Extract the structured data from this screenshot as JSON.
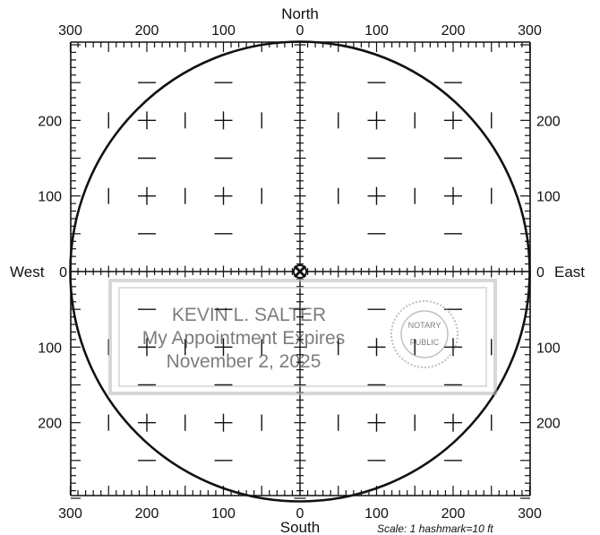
{
  "compass": {
    "north": "North",
    "south": "South",
    "west": "West",
    "east": "East"
  },
  "scale_note": "Scale:  1 hashmark=10 ft",
  "axis": {
    "range_ft": [
      -300,
      300
    ],
    "hashmark_ft": 10,
    "major_ft": 50,
    "top_ticks": [
      "300",
      "200",
      "100",
      "0",
      "100",
      "200",
      "300"
    ],
    "bottom_ticks": [
      "300",
      "200",
      "100",
      "0",
      "100",
      "200",
      "300"
    ],
    "left_ticks": [
      "200",
      "100",
      "0",
      "100",
      "200"
    ],
    "right_ticks": [
      "200",
      "100",
      "0",
      "100",
      "200"
    ],
    "tick_ft": [
      -300,
      -200,
      -100,
      0,
      100,
      200,
      300
    ],
    "side_tick_ft": [
      200,
      100,
      0,
      -100,
      -200
    ]
  },
  "circle": {
    "radius_ft": 300,
    "center_ft": [
      0,
      0
    ]
  },
  "center_marker": "X",
  "stamp": {
    "name": "KEVIN L. SALTER",
    "line2": "My Appointment Expires",
    "line3": "November 2, 2025",
    "seal_text": "NOTARY",
    "seal_center": "PUBLIC",
    "colors": {
      "ink": "#9a9a9a",
      "border": "#b8b8b8"
    }
  },
  "colors": {
    "ink": "#111111",
    "background": "#ffffff"
  }
}
